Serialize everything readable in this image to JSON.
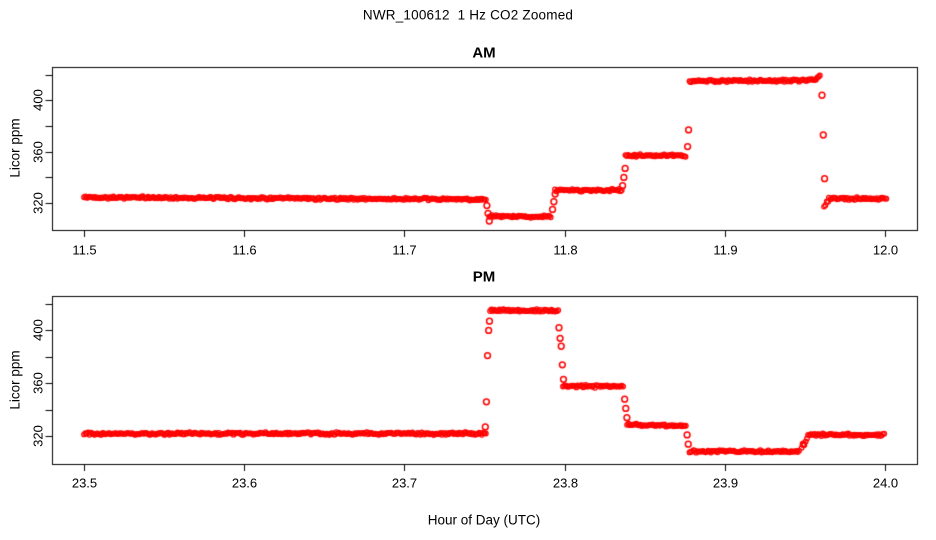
{
  "figure": {
    "title": "NWR_100612  1 Hz CO2 Zoomed",
    "background": "#FFFFFF",
    "axis_color": "#000000"
  },
  "chart_data": {
    "type": "scatter",
    "title": "NWR_100612  1 Hz CO2 Zoomed",
    "xlabel": "Hour of Day (UTC)",
    "ylabel": "Licor ppm",
    "grid": false,
    "legend": "none",
    "marker": {
      "style": "open-circle",
      "color": "#FF0000"
    },
    "description": "Two stacked panels (AM top, PM bottom) of 1 Hz Licor CO2 data showing flat ambient level with calibration step changes",
    "panels": [
      {
        "name": "AM",
        "xlim": [
          11.48,
          12.02
        ],
        "ylim": [
          299,
          426
        ],
        "xticks": [
          11.5,
          11.6,
          11.7,
          11.8,
          11.9,
          12.0
        ],
        "yticks_labeled": [
          320,
          360,
          400
        ],
        "yticks_all": [
          320,
          340,
          360,
          380,
          400,
          420
        ],
        "segments": [
          {
            "x0": 11.5,
            "x1": 11.751,
            "y_start": 324.5,
            "y_end": 322.8
          },
          {
            "x0": 11.753,
            "x1": 11.792,
            "y_start": 309.5,
            "y_end": 309.5
          },
          {
            "x0": 11.794,
            "x1": 11.836,
            "y_start": 330.0,
            "y_end": 330.0
          },
          {
            "x0": 11.838,
            "x1": 11.876,
            "y_start": 357.0,
            "y_end": 357.0
          },
          {
            "x0": 11.878,
            "x1": 11.956,
            "y_start": 415.0,
            "y_end": 415.5
          },
          {
            "x0": 11.956,
            "x1": 11.96,
            "y_start": 416.0,
            "y_end": 420.0
          },
          {
            "x0": 11.962,
            "x1": 11.965,
            "y_start": 318.0,
            "y_end": 322.0
          },
          {
            "x0": 11.965,
            "x1": 12.001,
            "y_start": 323.5,
            "y_end": 323.5
          }
        ],
        "transition_points": [
          [
            11.7515,
            318
          ],
          [
            11.7522,
            312
          ],
          [
            11.753,
            306
          ],
          [
            11.7925,
            315
          ],
          [
            11.7933,
            321
          ],
          [
            11.7941,
            327
          ],
          [
            11.8362,
            333.5
          ],
          [
            11.837,
            340
          ],
          [
            11.8378,
            347
          ],
          [
            11.8768,
            364
          ],
          [
            11.8774,
            377
          ],
          [
            11.9607,
            404
          ],
          [
            11.9615,
            373
          ],
          [
            11.9623,
            339
          ]
        ]
      },
      {
        "name": "PM",
        "xlim": [
          23.48,
          24.02
        ],
        "ylim": [
          299,
          426
        ],
        "xticks": [
          23.5,
          23.6,
          23.7,
          23.8,
          23.9,
          24.0
        ],
        "yticks_labeled": [
          320,
          360,
          400
        ],
        "yticks_all": [
          320,
          340,
          360,
          380,
          400,
          420
        ],
        "segments": [
          {
            "x0": 23.5,
            "x1": 23.751,
            "y_start": 322.0,
            "y_end": 322.0
          },
          {
            "x0": 23.7535,
            "x1": 23.796,
            "y_start": 415.0,
            "y_end": 415.0
          },
          {
            "x0": 23.799,
            "x1": 23.837,
            "y_start": 358.0,
            "y_end": 357.5
          },
          {
            "x0": 23.839,
            "x1": 23.876,
            "y_start": 328.5,
            "y_end": 328.0
          },
          {
            "x0": 23.878,
            "x1": 23.947,
            "y_start": 308.5,
            "y_end": 308.5
          },
          {
            "x0": 23.948,
            "x1": 23.952,
            "y_start": 311.0,
            "y_end": 319.0
          },
          {
            "x0": 23.952,
            "x1": 24.0,
            "y_start": 321.0,
            "y_end": 321.0
          }
        ],
        "transition_points": [
          [
            23.7505,
            327
          ],
          [
            23.7512,
            346
          ],
          [
            23.7519,
            381
          ],
          [
            23.7526,
            400
          ],
          [
            23.7531,
            407
          ],
          [
            23.7965,
            402
          ],
          [
            23.7972,
            394
          ],
          [
            23.7979,
            388
          ],
          [
            23.7986,
            374
          ],
          [
            23.7993,
            363
          ],
          [
            23.8375,
            348
          ],
          [
            23.8382,
            341
          ],
          [
            23.8389,
            334
          ],
          [
            23.8765,
            321
          ],
          [
            23.8772,
            314
          ],
          [
            23.949,
            314
          ]
        ]
      }
    ]
  }
}
